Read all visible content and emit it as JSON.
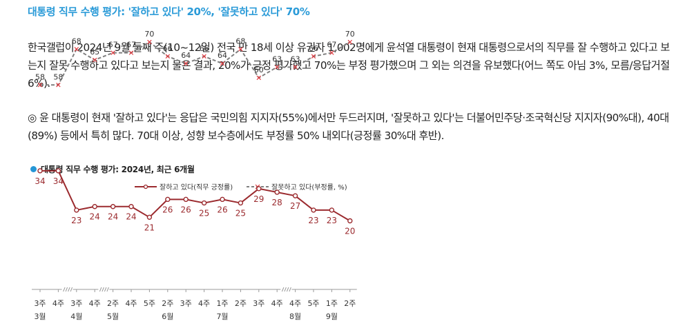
{
  "headline": "대통령 직무 수행 평가: '잘하고 있다' 20%, '잘못하고 있다' 70%",
  "paragraph1": "한국갤럽이 2024년 9월 둘째 주(10~12일) 전국 만 18세 이상 유권자 1,002명에게 윤석열 대통령이 현재 대통령으로서의 직무를 잘 수행하고 있다고 보는지 잘못 수행하고 있다고 보는지 물은 결과, 20%가 긍정 평가했고 70%는 부정 평가했으며 그 외는 의견을 유보했다(어느 쪽도 아님 3%, 모름/응답거절 6%).",
  "paragraph2": "◎ 윤 대통령이 현재 '잘하고 있다'는 응답은 국민의힘 지지자(55%)에서만 두드러지며, '잘못하고 있다'는 더불어민주당·조국혁신당 지지자(90%대), 40대(89%) 등에서 특히 많다. 70대 이상, 성향 보수층에서도 부정률 50% 내외다(긍정률 30%대 후반).",
  "chart_data": {
    "type": "line",
    "title": "대통령 직무 수행 평가: 2024년, 최근 6개월",
    "categories": [
      "3주",
      "4주",
      "3주",
      "4주",
      "2주",
      "4주",
      "5주",
      "2주",
      "3주",
      "4주",
      "1주",
      "2주",
      "3주",
      "4주",
      "4주",
      "5주",
      "1주",
      "2주"
    ],
    "month_labels": [
      {
        "index": 0,
        "label": "3월"
      },
      {
        "index": 2,
        "label": "4월"
      },
      {
        "index": 4,
        "label": "5월"
      },
      {
        "index": 7,
        "label": "6월"
      },
      {
        "index": 10,
        "label": "7월"
      },
      {
        "index": 14,
        "label": "8월"
      },
      {
        "index": 16,
        "label": "9월"
      }
    ],
    "axis_breaks_after_index": [
      1,
      3,
      13
    ],
    "series": [
      {
        "name": "잘하고 있다(직무 긍정률)",
        "color": "#9b2a2e",
        "marker": "circle",
        "style": "solid",
        "values": [
          34,
          34,
          23,
          24,
          24,
          24,
          21,
          26,
          26,
          25,
          26,
          25,
          29,
          28,
          27,
          23,
          23,
          20
        ]
      },
      {
        "name": "잘못하고 있다(부정률, %)",
        "color": "#7f7f7f",
        "marker": "x",
        "style": "dashed",
        "values": [
          58,
          58,
          68,
          65,
          67,
          67,
          70,
          66,
          64,
          66,
          64,
          68,
          60,
          63,
          63,
          66,
          67,
          70
        ]
      }
    ],
    "legend_position": "top-right",
    "grid": false,
    "colors": {
      "accent": "#2b9bd8",
      "title_dot": "#2596d6",
      "marker_x": "#e0383e"
    }
  }
}
